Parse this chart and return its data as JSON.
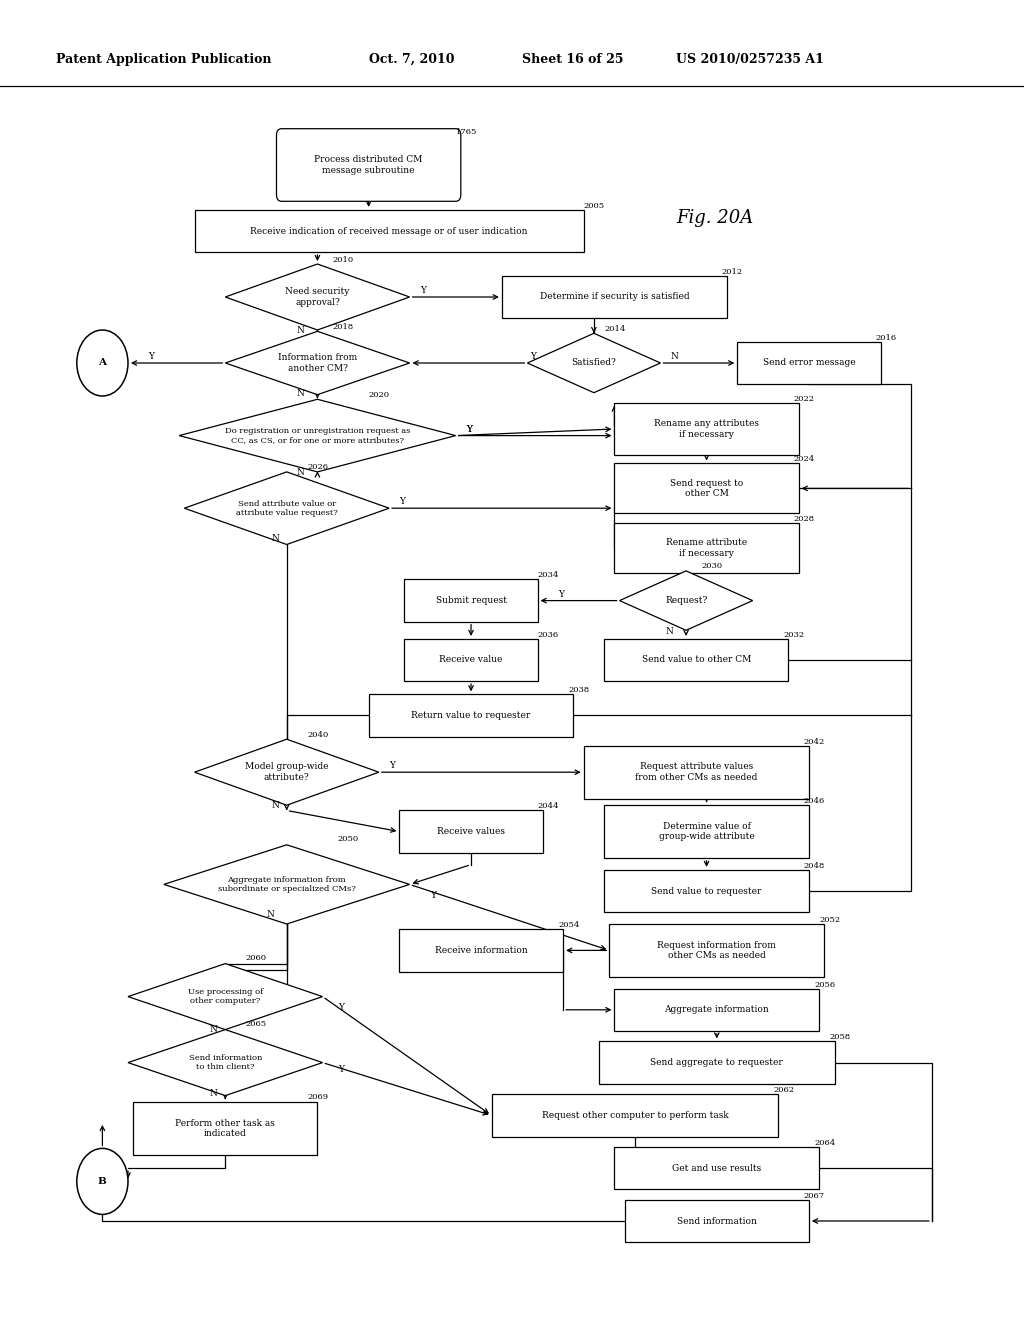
{
  "bg_color": "#ffffff",
  "header_left": "Patent Application Publication",
  "header_date": "Oct. 7, 2010",
  "header_sheet": "Sheet 16 of 25",
  "header_patent": "US 2010/0257235 A1",
  "fig_label": "Fig. 20A"
}
